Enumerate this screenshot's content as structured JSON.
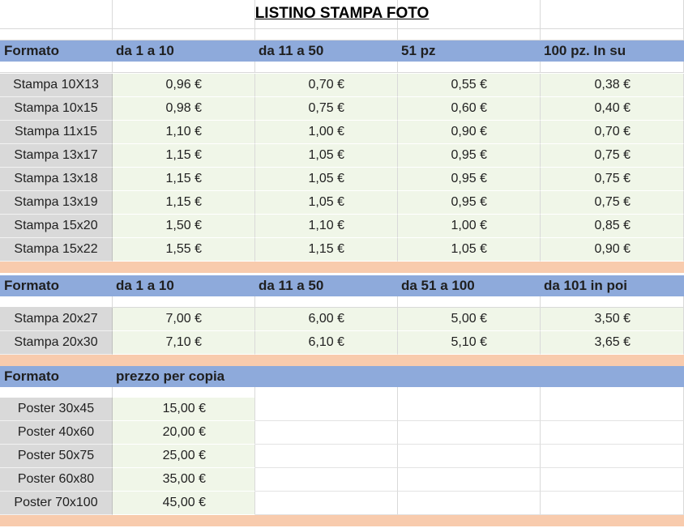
{
  "title": "LISTINO STAMPA FOTO",
  "section1": {
    "headers": [
      "Formato",
      "da 1 a 10",
      "da 11 a 50",
      "51 pz",
      "100 pz. In su"
    ],
    "rows": [
      {
        "label": "Stampa 10X13",
        "values": [
          "0,96 €",
          "0,70 €",
          "0,55 €",
          "0,38 €"
        ]
      },
      {
        "label": "Stampa 10x15",
        "values": [
          "0,98 €",
          "0,75 €",
          "0,60 €",
          "0,40 €"
        ]
      },
      {
        "label": "Stampa 11x15",
        "values": [
          "1,10 €",
          "1,00 €",
          "0,90 €",
          "0,70 €"
        ]
      },
      {
        "label": "Stampa 13x17",
        "values": [
          "1,15 €",
          "1,05 €",
          "0,95 €",
          "0,75 €"
        ]
      },
      {
        "label": "Stampa 13x18",
        "values": [
          "1,15 €",
          "1,05 €",
          "0,95 €",
          "0,75 €"
        ]
      },
      {
        "label": "Stampa 13x19",
        "values": [
          "1,15 €",
          "1,05 €",
          "0,95 €",
          "0,75 €"
        ]
      },
      {
        "label": "Stampa 15x20",
        "values": [
          "1,50 €",
          "1,10 €",
          "1,00 €",
          "0,85 €"
        ]
      },
      {
        "label": "Stampa 15x22",
        "values": [
          "1,55 €",
          "1,15 €",
          "1,05 €",
          "0,90 €"
        ]
      }
    ]
  },
  "section2": {
    "headers": [
      "Formato",
      "da 1 a 10",
      "da 11 a 50",
      "da 51 a 100",
      "da 101 in poi"
    ],
    "rows": [
      {
        "label": "Stampa 20x27",
        "values": [
          "7,00 €",
          "6,00 €",
          "5,00 €",
          "3,50 €"
        ]
      },
      {
        "label": "Stampa 20x30",
        "values": [
          "7,10 €",
          "6,10 €",
          "5,10 €",
          "3,65 €"
        ]
      }
    ]
  },
  "section3": {
    "headers": [
      "Formato",
      "prezzo per copia"
    ],
    "rows": [
      {
        "label": "Poster 30x45",
        "value": "15,00 €"
      },
      {
        "label": "Poster 40x60",
        "value": "20,00 €"
      },
      {
        "label": "Poster 50x75",
        "value": "25,00 €"
      },
      {
        "label": "Poster 60x80",
        "value": "35,00 €"
      },
      {
        "label": "Poster 70x100",
        "value": "45,00 €"
      }
    ]
  },
  "colors": {
    "header_blue": "#8eaadb",
    "separator_peach": "#f8cbad",
    "label_gray": "#d9d9d9",
    "value_green": "#f0f6e8"
  }
}
